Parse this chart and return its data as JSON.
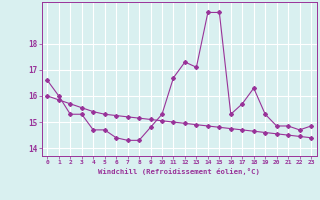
{
  "hours": [
    0,
    1,
    2,
    3,
    4,
    5,
    6,
    7,
    8,
    9,
    10,
    11,
    12,
    13,
    14,
    15,
    16,
    17,
    18,
    19,
    20,
    21,
    22,
    23
  ],
  "windchill": [
    16.6,
    16.0,
    15.3,
    15.3,
    14.7,
    14.7,
    14.4,
    14.3,
    14.3,
    14.8,
    15.3,
    16.7,
    17.3,
    17.1,
    19.2,
    19.2,
    15.3,
    15.7,
    16.3,
    15.3,
    14.85,
    14.85,
    14.7,
    14.85
  ],
  "trend": [
    16.0,
    15.85,
    15.7,
    15.55,
    15.4,
    15.3,
    15.25,
    15.2,
    15.15,
    15.1,
    15.05,
    15.0,
    14.95,
    14.9,
    14.85,
    14.8,
    14.75,
    14.7,
    14.65,
    14.6,
    14.55,
    14.5,
    14.45,
    14.4
  ],
  "line_color": "#993399",
  "bg_color": "#d9f0f0",
  "grid_color": "#ffffff",
  "xlabel": "Windchill (Refroidissement éolien,°C)",
  "yticks": [
    14,
    15,
    16,
    17,
    18
  ],
  "ylim": [
    13.7,
    19.6
  ],
  "xlim": [
    -0.5,
    23.5
  ]
}
